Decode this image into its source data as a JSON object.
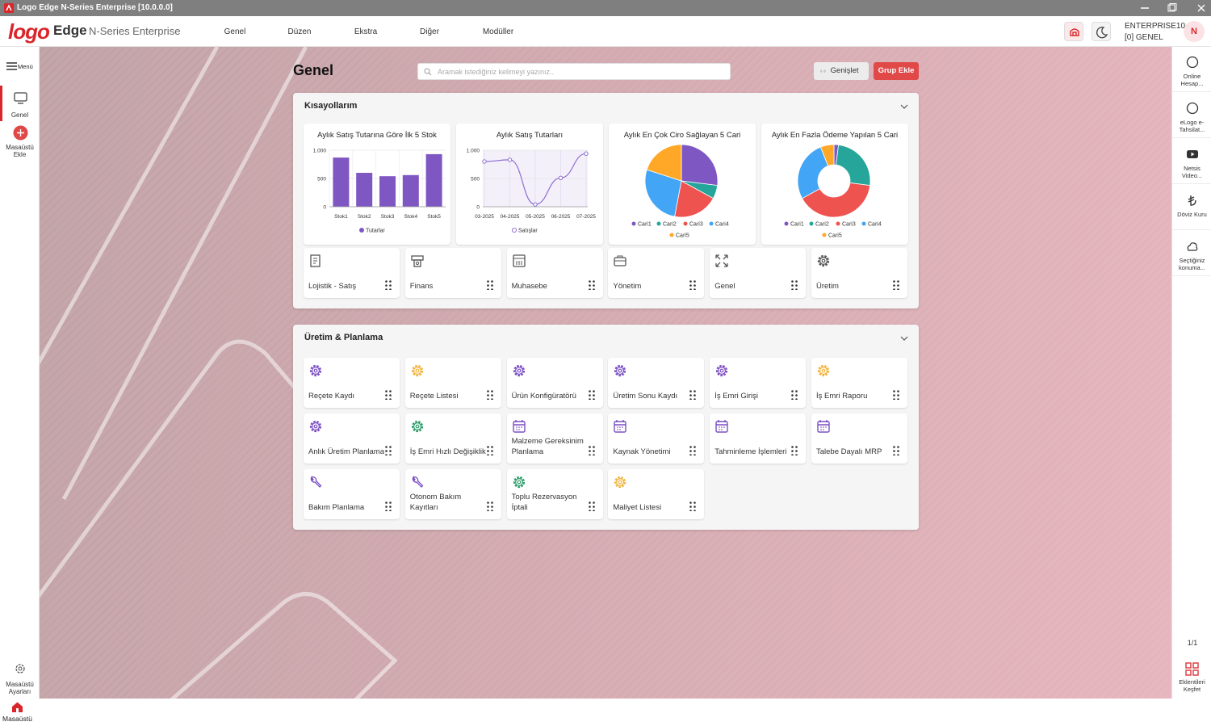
{
  "window": {
    "title": "Logo Edge N-Series Enterprise [10.0.0.0]"
  },
  "header": {
    "logo": "logo",
    "brand": "Edge",
    "product": "N-Series Enterprise",
    "menu": [
      "Genel",
      "Düzen",
      "Ekstra",
      "Diğer",
      "Modüller"
    ],
    "user": "ENTERPRISE10",
    "company": "[0] GENEL",
    "avatar": "N"
  },
  "sidebar": {
    "menu": "Menü",
    "items": [
      "Genel",
      "Masaüstü Ekle"
    ],
    "settings": "Masaüstü Ayarları",
    "home": "Masaüstü"
  },
  "right_panel": {
    "items": [
      "Online Hesap...",
      "eLogo e-Tahsilat...",
      "Netsis Video...",
      "Döviz Kuru",
      "Seçtiğiniz konuma..."
    ],
    "pager": "1/1",
    "discover": "Eklentileri Keşfet"
  },
  "page": {
    "title": "Genel",
    "search_placeholder": "Aramak istediğiniz kelimeyi yazınız..",
    "expand": "Genişlet",
    "add_group": "Grup Ekle"
  },
  "groups": [
    {
      "title": "Kısayollarım",
      "tiles": [
        {
          "label": "Lojistik - Satış",
          "color": "#555555"
        },
        {
          "label": "Finans",
          "color": "#555555"
        },
        {
          "label": "Muhasebe",
          "color": "#555555"
        },
        {
          "label": "Yönetim",
          "color": "#555555"
        },
        {
          "label": "Genel",
          "color": "#555555"
        },
        {
          "label": "Üretim",
          "color": "#555555"
        }
      ]
    },
    {
      "title": "Üretim & Planlama",
      "tiles": [
        {
          "label": "Reçete Kaydı",
          "color": "#7b4fc4"
        },
        {
          "label": "Reçete Listesi",
          "color": "#f2b33d"
        },
        {
          "label": "Ürün Konfigüratörü",
          "color": "#7b4fc4"
        },
        {
          "label": "Üretim Sonu Kaydı",
          "color": "#7b4fc4"
        },
        {
          "label": "İş Emri Girişi",
          "color": "#7b4fc4"
        },
        {
          "label": "İş Emri Raporu",
          "color": "#f2b33d"
        },
        {
          "label": "Anlık Üretim Planlama",
          "color": "#7b4fc4"
        },
        {
          "label": "İş Emri Hızlı Değişiklik",
          "color": "#2e9e6a"
        },
        {
          "label": "Malzeme Gereksinim Planlama",
          "color": "#7b4fc4"
        },
        {
          "label": "Kaynak Yönetimi",
          "color": "#7b4fc4"
        },
        {
          "label": "Tahminleme İşlemleri",
          "color": "#7b4fc4"
        },
        {
          "label": "Talebe Dayalı MRP",
          "color": "#7b4fc4"
        },
        {
          "label": "Bakım Planlama",
          "color": "#7b4fc4"
        },
        {
          "label": "Otonom Bakım Kayıtları",
          "color": "#7b4fc4"
        },
        {
          "label": "Toplu Rezervasyon İptali",
          "color": "#2e9e6a"
        },
        {
          "label": "Maliyet Listesi",
          "color": "#f2b33d"
        }
      ]
    }
  ],
  "chart_data": [
    {
      "type": "bar",
      "title": "Aylık Satış Tutarına Göre İlk 5 Stok",
      "categories": [
        "Stok1",
        "Stok2",
        "Stok3",
        "Stok4",
        "Stok5"
      ],
      "series": [
        {
          "name": "Tutarlar",
          "color": "#7e57c2",
          "values": [
            870,
            600,
            540,
            560,
            930
          ]
        }
      ],
      "ylim": [
        0,
        1000
      ],
      "yticks": [
        0,
        500,
        {
          "value": 1000,
          "label": "1.000"
        }
      ],
      "grid": true
    },
    {
      "type": "line",
      "title": "Aylık Satış Tutarları",
      "categories": [
        "03-2025",
        "04-2025",
        "05-2025",
        "06-2025",
        "07-2025"
      ],
      "series": [
        {
          "name": "Satışlar",
          "color": "#8e6fd1",
          "values": [
            800,
            830,
            40,
            510,
            940
          ]
        }
      ],
      "ylim": [
        0,
        1000
      ],
      "yticks": [
        0,
        500,
        {
          "value": 1000,
          "label": "1.000"
        }
      ],
      "grid": true
    },
    {
      "type": "pie",
      "title": "Aylık En Çok Ciro Sağlayan 5 Cari",
      "categories": [
        "Cari1",
        "Cari2",
        "Cari3",
        "Cari4",
        "Cari5"
      ],
      "values": [
        27,
        6,
        20,
        27,
        20
      ],
      "colors": [
        "#7e57c2",
        "#26a69a",
        "#ef5350",
        "#42a5f5",
        "#ffa726"
      ]
    },
    {
      "type": "donut",
      "title": "Aylık En Fazla Ödeme Yapılan 5 Cari",
      "categories": [
        "Cari1",
        "Cari2",
        "Cari3",
        "Cari4",
        "Cari5"
      ],
      "values": [
        2,
        25,
        40,
        27,
        6
      ],
      "colors": [
        "#7e57c2",
        "#26a69a",
        "#ef5350",
        "#42a5f5",
        "#ffa726"
      ]
    }
  ]
}
